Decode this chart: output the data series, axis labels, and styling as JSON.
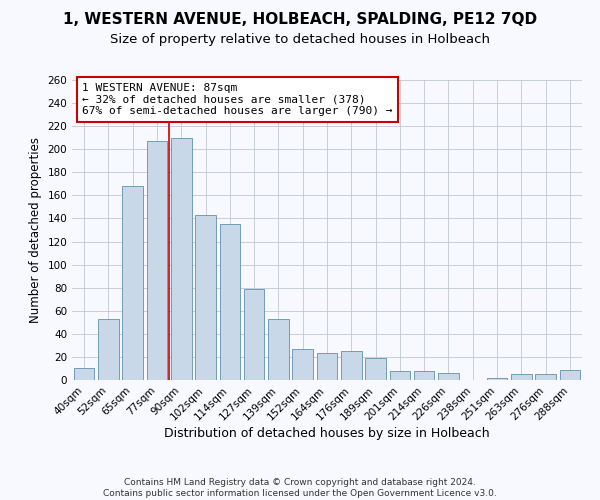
{
  "title": "1, WESTERN AVENUE, HOLBEACH, SPALDING, PE12 7QD",
  "subtitle": "Size of property relative to detached houses in Holbeach",
  "xlabel": "Distribution of detached houses by size in Holbeach",
  "ylabel": "Number of detached properties",
  "bar_labels": [
    "40sqm",
    "52sqm",
    "65sqm",
    "77sqm",
    "90sqm",
    "102sqm",
    "114sqm",
    "127sqm",
    "139sqm",
    "152sqm",
    "164sqm",
    "176sqm",
    "189sqm",
    "201sqm",
    "214sqm",
    "226sqm",
    "238sqm",
    "251sqm",
    "263sqm",
    "276sqm",
    "288sqm"
  ],
  "bar_values": [
    10,
    53,
    168,
    207,
    210,
    143,
    135,
    79,
    53,
    27,
    23,
    25,
    19,
    8,
    8,
    6,
    0,
    2,
    5,
    5,
    9
  ],
  "bar_color": "#c8d8e8",
  "bar_edge_color": "#6090b0",
  "grid_color": "#c0c8d0",
  "annotation_text_line1": "1 WESTERN AVENUE: 87sqm",
  "annotation_text_line2": "← 32% of detached houses are smaller (378)",
  "annotation_text_line3": "67% of semi-detached houses are larger (790) →",
  "annotation_box_color": "#ffffff",
  "annotation_box_edge": "#cc0000",
  "red_line_color": "#cc0000",
  "footer_line1": "Contains HM Land Registry data © Crown copyright and database right 2024.",
  "footer_line2": "Contains public sector information licensed under the Open Government Licence v3.0.",
  "ylim": [
    0,
    260
  ],
  "yticks": [
    0,
    20,
    40,
    60,
    80,
    100,
    120,
    140,
    160,
    180,
    200,
    220,
    240,
    260
  ],
  "title_fontsize": 11,
  "subtitle_fontsize": 9.5,
  "xlabel_fontsize": 9,
  "ylabel_fontsize": 8.5,
  "tick_fontsize": 7.5,
  "footer_fontsize": 6.5,
  "annotation_fontsize": 8,
  "background_color": "#f8f8ff"
}
